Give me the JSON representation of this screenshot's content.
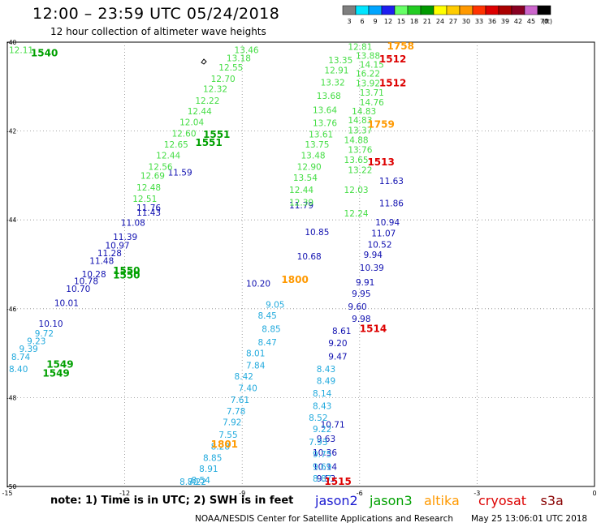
{
  "header": {
    "title": "12:00 – 23:59 UTC 05/24/2018",
    "subtitle": "12 hour collection of altimeter wave heights"
  },
  "scale": {
    "unit": "(ft)",
    "levels": [
      {
        "label": "3",
        "color": "#7f7f7f"
      },
      {
        "label": "6",
        "color": "#00e5ff"
      },
      {
        "label": "9",
        "color": "#00a5ff"
      },
      {
        "label": "12",
        "color": "#1e1ef0"
      },
      {
        "label": "15",
        "color": "#66ff66"
      },
      {
        "label": "18",
        "color": "#22cc22"
      },
      {
        "label": "21",
        "color": "#009900"
      },
      {
        "label": "24",
        "color": "#ffff00"
      },
      {
        "label": "27",
        "color": "#ffcc00"
      },
      {
        "label": "30",
        "color": "#ff9900"
      },
      {
        "label": "33",
        "color": "#ff3300"
      },
      {
        "label": "36",
        "color": "#dd0000"
      },
      {
        "label": "39",
        "color": "#aa0000"
      },
      {
        "label": "42",
        "color": "#880022"
      },
      {
        "label": "45",
        "color": "#cc66cc"
      },
      {
        "label": "70",
        "color": "#000000"
      }
    ]
  },
  "axes": {
    "x_ticks": [
      "-15",
      "-12",
      "-9",
      "-6",
      "-3",
      "0"
    ],
    "y_ticks": [
      "-40",
      "-42",
      "-44",
      "-46",
      "-48",
      "-50"
    ],
    "xlim": [
      -15,
      0
    ],
    "ylim": [
      -50,
      -40
    ]
  },
  "chart_data": {
    "type": "scatter",
    "series": [
      {
        "name": "jason2",
        "color": "#1010b0",
        "points": [
          {
            "lon": -10.9,
            "lat": -42.93,
            "v": "11.59"
          },
          {
            "lon": -11.7,
            "lat": -43.72,
            "v": "11.76"
          },
          {
            "lon": -11.7,
            "lat": -43.83,
            "v": "11.43"
          },
          {
            "lon": -12.1,
            "lat": -44.06,
            "v": "11.08"
          },
          {
            "lon": -12.3,
            "lat": -44.38,
            "v": "11.39"
          },
          {
            "lon": -12.5,
            "lat": -44.57,
            "v": "10.97"
          },
          {
            "lon": -12.7,
            "lat": -44.74,
            "v": "11.28"
          },
          {
            "lon": -12.9,
            "lat": -44.92,
            "v": "11.48"
          },
          {
            "lon": -13.1,
            "lat": -45.22,
            "v": "10.28"
          },
          {
            "lon": -13.3,
            "lat": -45.37,
            "v": "10.78"
          },
          {
            "lon": -13.5,
            "lat": -45.55,
            "v": "10.70"
          },
          {
            "lon": -13.8,
            "lat": -45.87,
            "v": "10.01"
          },
          {
            "lon": -14.2,
            "lat": -46.33,
            "v": "10.10"
          },
          {
            "lon": -7.8,
            "lat": -43.67,
            "v": "11.79"
          },
          {
            "lon": -7.4,
            "lat": -44.27,
            "v": "10.85"
          },
          {
            "lon": -7.6,
            "lat": -44.82,
            "v": "10.68"
          },
          {
            "lon": -8.9,
            "lat": -45.43,
            "v": "10.20"
          },
          {
            "lon": -5.5,
            "lat": -43.12,
            "v": "11.63"
          },
          {
            "lon": -5.5,
            "lat": -43.62,
            "v": "11.86"
          },
          {
            "lon": -5.6,
            "lat": -44.05,
            "v": "10.94"
          },
          {
            "lon": -5.7,
            "lat": -44.3,
            "v": "11.07"
          },
          {
            "lon": -5.8,
            "lat": -44.55,
            "v": "10.52"
          },
          {
            "lon": -5.9,
            "lat": -44.78,
            "v": "9.94"
          },
          {
            "lon": -6.0,
            "lat": -45.07,
            "v": "10.39"
          },
          {
            "lon": -6.1,
            "lat": -45.4,
            "v": "9.91"
          },
          {
            "lon": -6.2,
            "lat": -45.66,
            "v": "9.95"
          },
          {
            "lon": -6.3,
            "lat": -45.95,
            "v": "9.60"
          },
          {
            "lon": -6.2,
            "lat": -46.22,
            "v": "9.98"
          },
          {
            "lon": -6.7,
            "lat": -46.5,
            "v": "8.61"
          },
          {
            "lon": -6.8,
            "lat": -46.77,
            "v": "9.20"
          },
          {
            "lon": -6.8,
            "lat": -47.07,
            "v": "9.47"
          },
          {
            "lon": -7.0,
            "lat": -48.6,
            "v": "10.71"
          },
          {
            "lon": -7.1,
            "lat": -48.92,
            "v": "9.63"
          },
          {
            "lon": -7.2,
            "lat": -49.23,
            "v": "10.36"
          },
          {
            "lon": -7.2,
            "lat": -49.55,
            "v": "10.14"
          },
          {
            "lon": -7.1,
            "lat": -49.82,
            "v": "9.53"
          }
        ]
      },
      {
        "name": "jason3",
        "color": "#44dd44",
        "points": [
          {
            "lon": -9.2,
            "lat": -40.17,
            "v": "13.46"
          },
          {
            "lon": -9.4,
            "lat": -40.36,
            "v": "13.18"
          },
          {
            "lon": -9.6,
            "lat": -40.57,
            "v": "12.55"
          },
          {
            "lon": -9.8,
            "lat": -40.82,
            "v": "12.70"
          },
          {
            "lon": -10.0,
            "lat": -41.05,
            "v": "12.32"
          },
          {
            "lon": -10.2,
            "lat": -41.31,
            "v": "12.22"
          },
          {
            "lon": -10.4,
            "lat": -41.55,
            "v": "12.44"
          },
          {
            "lon": -10.6,
            "lat": -41.8,
            "v": "12.04"
          },
          {
            "lon": -10.8,
            "lat": -42.05,
            "v": "12.60"
          },
          {
            "lon": -11.0,
            "lat": -42.3,
            "v": "12.65"
          },
          {
            "lon": -11.2,
            "lat": -42.55,
            "v": "12.44"
          },
          {
            "lon": -11.4,
            "lat": -42.8,
            "v": "12.56"
          },
          {
            "lon": -11.6,
            "lat": -43.0,
            "v": "12.69"
          },
          {
            "lon": -11.7,
            "lat": -43.27,
            "v": "12.48"
          },
          {
            "lon": -11.8,
            "lat": -43.52,
            "v": "12.51"
          },
          {
            "lon": -15.0,
            "lat": -40.17,
            "v": "12.11"
          },
          {
            "lon": -6.3,
            "lat": -40.1,
            "v": "12.81"
          },
          {
            "lon": -6.1,
            "lat": -40.3,
            "v": "13.88"
          },
          {
            "lon": -6.0,
            "lat": -40.5,
            "v": "14.15"
          },
          {
            "lon": -6.1,
            "lat": -40.7,
            "v": "16.22"
          },
          {
            "lon": -6.1,
            "lat": -40.92,
            "v": "13.92"
          },
          {
            "lon": -6.0,
            "lat": -41.13,
            "v": "13.71"
          },
          {
            "lon": -6.0,
            "lat": -41.35,
            "v": "14.76"
          },
          {
            "lon": -6.2,
            "lat": -41.55,
            "v": "14.83"
          },
          {
            "lon": -6.3,
            "lat": -41.75,
            "v": "14.83"
          },
          {
            "lon": -6.3,
            "lat": -41.98,
            "v": "13.37"
          },
          {
            "lon": -6.4,
            "lat": -42.2,
            "v": "14.88"
          },
          {
            "lon": -6.3,
            "lat": -42.42,
            "v": "13.76"
          },
          {
            "lon": -6.4,
            "lat": -42.65,
            "v": "13.65"
          },
          {
            "lon": -6.3,
            "lat": -42.87,
            "v": "13.22"
          },
          {
            "lon": -6.4,
            "lat": -43.32,
            "v": "12.03"
          },
          {
            "lon": -6.4,
            "lat": -43.85,
            "v": "12.24"
          },
          {
            "lon": -6.8,
            "lat": -40.4,
            "v": "13.35"
          },
          {
            "lon": -6.9,
            "lat": -40.63,
            "v": "12.91"
          },
          {
            "lon": -7.0,
            "lat": -40.9,
            "v": "13.32"
          },
          {
            "lon": -7.1,
            "lat": -41.2,
            "v": "13.68"
          },
          {
            "lon": -7.2,
            "lat": -41.52,
            "v": "13.64"
          },
          {
            "lon": -7.2,
            "lat": -41.82,
            "v": "13.76"
          },
          {
            "lon": -7.3,
            "lat": -42.07,
            "v": "13.61"
          },
          {
            "lon": -7.4,
            "lat": -42.3,
            "v": "13.75"
          },
          {
            "lon": -7.5,
            "lat": -42.55,
            "v": "13.48"
          },
          {
            "lon": -7.6,
            "lat": -42.8,
            "v": "12.90"
          },
          {
            "lon": -7.7,
            "lat": -43.05,
            "v": "13.54"
          },
          {
            "lon": -7.8,
            "lat": -43.32,
            "v": "12.44"
          },
          {
            "lon": -7.8,
            "lat": -43.6,
            "v": "12.39"
          }
        ]
      },
      {
        "name": "altika",
        "color": "#22aadd",
        "points": [
          {
            "lon": -14.3,
            "lat": -46.55,
            "v": "9.72"
          },
          {
            "lon": -14.5,
            "lat": -46.72,
            "v": "9.23"
          },
          {
            "lon": -14.7,
            "lat": -46.9,
            "v": "9.39"
          },
          {
            "lon": -14.9,
            "lat": -47.08,
            "v": "8.74"
          },
          {
            "lon": -15.0,
            "lat": -47.35,
            "v": "8.40"
          },
          {
            "lon": -8.4,
            "lat": -45.9,
            "v": "9.05"
          },
          {
            "lon": -8.6,
            "lat": -46.15,
            "v": "8.45"
          },
          {
            "lon": -8.5,
            "lat": -46.45,
            "v": "8.85"
          },
          {
            "lon": -8.6,
            "lat": -46.75,
            "v": "8.47"
          },
          {
            "lon": -8.9,
            "lat": -47.0,
            "v": "8.01"
          },
          {
            "lon": -8.9,
            "lat": -47.27,
            "v": "7.84"
          },
          {
            "lon": -9.2,
            "lat": -47.52,
            "v": "8.42"
          },
          {
            "lon": -9.1,
            "lat": -47.78,
            "v": "7.40"
          },
          {
            "lon": -9.3,
            "lat": -48.05,
            "v": "7.61"
          },
          {
            "lon": -9.4,
            "lat": -48.3,
            "v": "7.78"
          },
          {
            "lon": -9.5,
            "lat": -48.55,
            "v": "7.92"
          },
          {
            "lon": -9.6,
            "lat": -48.83,
            "v": "7.55"
          },
          {
            "lon": -9.8,
            "lat": -49.1,
            "v": "8.28"
          },
          {
            "lon": -10.0,
            "lat": -49.35,
            "v": "8.85"
          },
          {
            "lon": -10.1,
            "lat": -49.6,
            "v": "8.91"
          },
          {
            "lon": -10.3,
            "lat": -49.85,
            "v": "8.54"
          },
          {
            "lon": -10.4,
            "lat": -50.1,
            "v": "8.22"
          },
          {
            "lon": -10.6,
            "lat": -50.35,
            "v": "8.70"
          },
          {
            "lon": -7.1,
            "lat": -47.35,
            "v": "8.43"
          },
          {
            "lon": -7.1,
            "lat": -47.62,
            "v": "8.49"
          },
          {
            "lon": -7.2,
            "lat": -47.9,
            "v": "8.14"
          },
          {
            "lon": -7.2,
            "lat": -48.18,
            "v": "8.43"
          },
          {
            "lon": -7.3,
            "lat": -48.45,
            "v": "8.52"
          },
          {
            "lon": -7.2,
            "lat": -48.7,
            "v": "9.22"
          },
          {
            "lon": -7.3,
            "lat": -49.0,
            "v": "7.93"
          },
          {
            "lon": -7.2,
            "lat": -49.27,
            "v": "9.75"
          },
          {
            "lon": -7.2,
            "lat": -49.55,
            "v": "9.69"
          },
          {
            "lon": -7.2,
            "lat": -49.82,
            "v": "8.87"
          }
        ]
      }
    ],
    "time_labels": [
      {
        "lon": -14.4,
        "lat": -40.25,
        "v": "1540",
        "color": "#00a000"
      },
      {
        "lon": -5.3,
        "lat": -40.08,
        "v": "1758",
        "color": "#ff9900"
      },
      {
        "lon": -5.5,
        "lat": -40.38,
        "v": "1512",
        "color": "#dd0000"
      },
      {
        "lon": -5.5,
        "lat": -40.92,
        "v": "1512",
        "color": "#dd0000"
      },
      {
        "lon": -10.0,
        "lat": -42.08,
        "v": "1551",
        "color": "#00a000"
      },
      {
        "lon": -10.2,
        "lat": -42.26,
        "v": "1551",
        "color": "#00a000"
      },
      {
        "lon": -5.8,
        "lat": -41.85,
        "v": "1759",
        "color": "#ff9900"
      },
      {
        "lon": -5.8,
        "lat": -42.7,
        "v": "1513",
        "color": "#dd0000"
      },
      {
        "lon": -12.3,
        "lat": -45.15,
        "v": "1550",
        "color": "#00a000"
      },
      {
        "lon": -12.3,
        "lat": -45.25,
        "v": "1550",
        "color": "#00a000"
      },
      {
        "lon": -8.0,
        "lat": -45.35,
        "v": "1800",
        "color": "#ff9900"
      },
      {
        "lon": -6.0,
        "lat": -46.45,
        "v": "1514",
        "color": "#dd0000"
      },
      {
        "lon": -14.0,
        "lat": -47.25,
        "v": "1549",
        "color": "#00a000"
      },
      {
        "lon": -14.1,
        "lat": -47.45,
        "v": "1549",
        "color": "#00a000"
      },
      {
        "lon": -9.8,
        "lat": -49.05,
        "v": "1801",
        "color": "#ff9900"
      },
      {
        "lon": -6.9,
        "lat": -50.15,
        "v": "1515",
        "color": "#dd0000"
      }
    ]
  },
  "footer": {
    "note": "note:  1) Time is in UTC;  2) SWH is in feet",
    "legend": [
      {
        "label": "jason2",
        "color": "#1a1ad0"
      },
      {
        "label": "jason3",
        "color": "#00a000"
      },
      {
        "label": "altika",
        "color": "#ff9900"
      },
      {
        "label": "cryosat",
        "color": "#dd0000"
      },
      {
        "label": "s3a",
        "color": "#880000"
      }
    ],
    "credit": "NOAA/NESDIS Center for Satellite Applications and Research",
    "stamp": "May 25 13:06:01 UTC 2018"
  }
}
